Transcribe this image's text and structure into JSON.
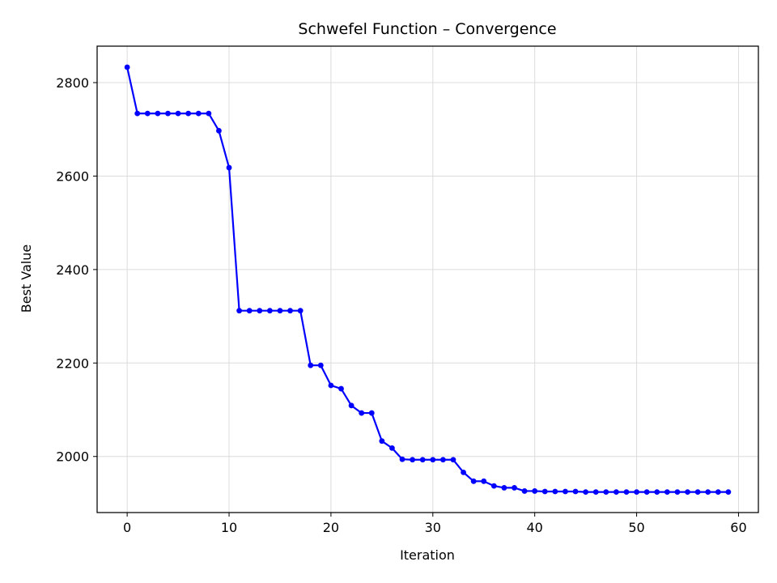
{
  "chart_data": {
    "type": "line",
    "title": "Schwefel Function – Convergence",
    "xlabel": "Iteration",
    "ylabel": "Best Value",
    "xlim": [
      -2.95,
      61.95
    ],
    "ylim": [
      1880,
      2878
    ],
    "xticks": [
      0,
      10,
      20,
      30,
      40,
      50,
      60
    ],
    "yticks": [
      2000,
      2200,
      2400,
      2600,
      2800
    ],
    "grid": true,
    "line_color": "#0000ff",
    "marker": "circle",
    "series": [
      {
        "x": [
          0,
          1,
          2,
          3,
          4,
          5,
          6,
          7,
          8,
          9,
          10,
          11,
          12,
          13,
          14,
          15,
          16,
          17,
          18,
          19,
          20,
          21,
          22,
          23,
          24,
          25,
          26,
          27,
          28,
          29,
          30,
          31,
          32,
          33,
          34,
          35,
          36,
          37,
          38,
          39,
          40,
          41,
          42,
          43,
          44,
          45,
          46,
          47,
          48,
          49,
          50,
          51,
          52,
          53,
          54,
          55,
          56,
          57,
          58,
          59
        ],
        "y": [
          2833,
          2734,
          2734,
          2734,
          2734,
          2734,
          2734,
          2734,
          2734,
          2697,
          2618,
          2312,
          2312,
          2312,
          2312,
          2312,
          2312,
          2312,
          2195,
          2195,
          2152,
          2145,
          2109,
          2093,
          2093,
          2033,
          2018,
          1994,
          1993,
          1993,
          1993,
          1993,
          1993,
          1966,
          1947,
          1947,
          1937,
          1933,
          1933,
          1926,
          1926,
          1925,
          1925,
          1925,
          1925,
          1924,
          1924,
          1924,
          1924,
          1924,
          1924,
          1924,
          1924,
          1924,
          1924,
          1924,
          1924,
          1924,
          1924,
          1924
        ]
      }
    ]
  }
}
